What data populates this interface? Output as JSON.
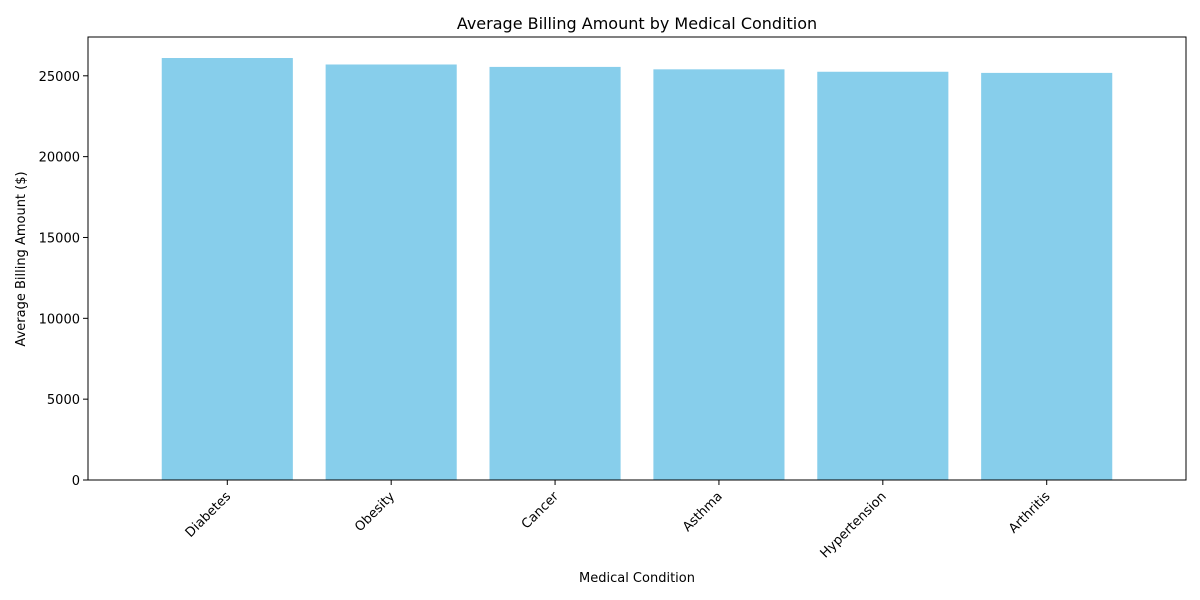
{
  "chart_data": {
    "type": "bar",
    "title": "Average Billing Amount by Medical Condition",
    "xlabel": "Medical Condition",
    "ylabel": "Average Billing Amount ($)",
    "categories": [
      "Diabetes",
      "Obesity",
      "Cancer",
      "Asthma",
      "Hypertension",
      "Arthritis"
    ],
    "values": [
      26100,
      25700,
      25550,
      25400,
      25250,
      25180
    ],
    "ylim": [
      0,
      27400
    ],
    "yticks": [
      0,
      5000,
      10000,
      15000,
      20000,
      25000
    ],
    "bar_color": "#87ceeb",
    "grid": false,
    "legend": "none"
  }
}
